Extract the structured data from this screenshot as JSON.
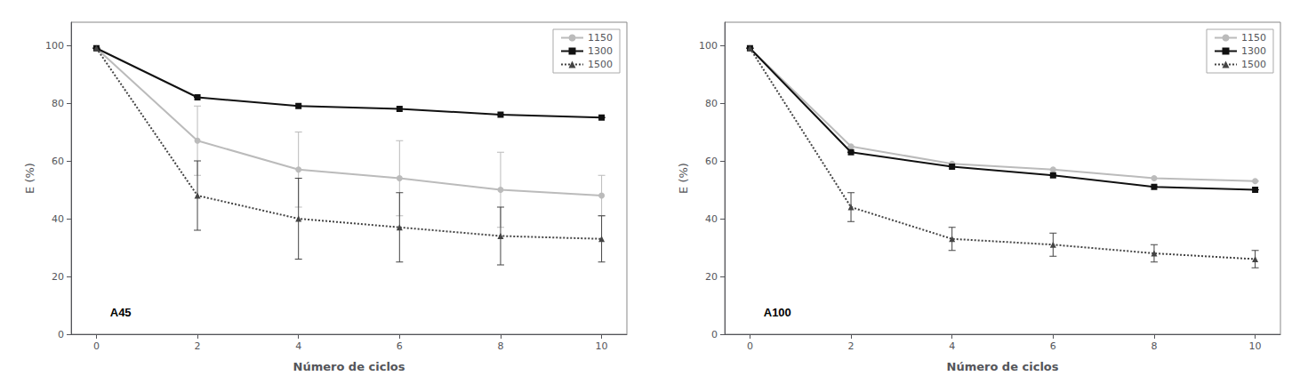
{
  "chart_data": [
    {
      "type": "line",
      "annotation": "A45",
      "xlabel": "Número de ciclos",
      "ylabel": "E (%)",
      "x": [
        0,
        2,
        4,
        6,
        8,
        10
      ],
      "series": [
        {
          "name": "1150",
          "color": "#bbbbbb",
          "marker": "circle",
          "line_style": "solid",
          "values": [
            99,
            67,
            57,
            54,
            50,
            48
          ],
          "yerr": [
            0,
            12,
            13,
            13,
            13,
            7
          ]
        },
        {
          "name": "1300",
          "color": "#111111",
          "marker": "square",
          "line_style": "solid",
          "values": [
            99,
            82,
            79,
            78,
            76,
            75
          ],
          "yerr": [
            0,
            0,
            0,
            0,
            0,
            0
          ]
        },
        {
          "name": "1500",
          "color": "#444444",
          "marker": "triangle",
          "line_style": "dotted",
          "values": [
            99,
            48,
            40,
            37,
            34,
            33
          ],
          "yerr": [
            0,
            12,
            14,
            12,
            10,
            8
          ]
        }
      ],
      "xlim": [
        -0.5,
        10.5
      ],
      "xticks": [
        0,
        2,
        4,
        6,
        8,
        10
      ],
      "ylim": [
        0,
        108
      ],
      "yticks": [
        0,
        20,
        40,
        60,
        80,
        100
      ],
      "grid": false,
      "legend": "upper right"
    },
    {
      "type": "line",
      "annotation": "A100",
      "xlabel": "Número de ciclos",
      "ylabel": "E (%)",
      "x": [
        0,
        2,
        4,
        6,
        8,
        10
      ],
      "series": [
        {
          "name": "1150",
          "color": "#bbbbbb",
          "marker": "circle",
          "line_style": "solid",
          "values": [
            99,
            65,
            59,
            57,
            54,
            53
          ],
          "yerr": [
            0,
            0,
            0,
            0,
            0,
            0
          ]
        },
        {
          "name": "1300",
          "color": "#111111",
          "marker": "square",
          "line_style": "solid",
          "values": [
            99,
            63,
            58,
            55,
            51,
            50
          ],
          "yerr": [
            0,
            0,
            0,
            0,
            0,
            0
          ]
        },
        {
          "name": "1500",
          "color": "#444444",
          "marker": "triangle",
          "line_style": "dotted",
          "values": [
            99,
            44,
            33,
            31,
            28,
            26
          ],
          "yerr": [
            0,
            5,
            4,
            4,
            3,
            3
          ]
        }
      ],
      "xlim": [
        -0.5,
        10.5
      ],
      "xticks": [
        0,
        2,
        4,
        6,
        8,
        10
      ],
      "ylim": [
        0,
        108
      ],
      "yticks": [
        0,
        20,
        40,
        60,
        80,
        100
      ],
      "grid": false,
      "legend": "upper right"
    }
  ]
}
